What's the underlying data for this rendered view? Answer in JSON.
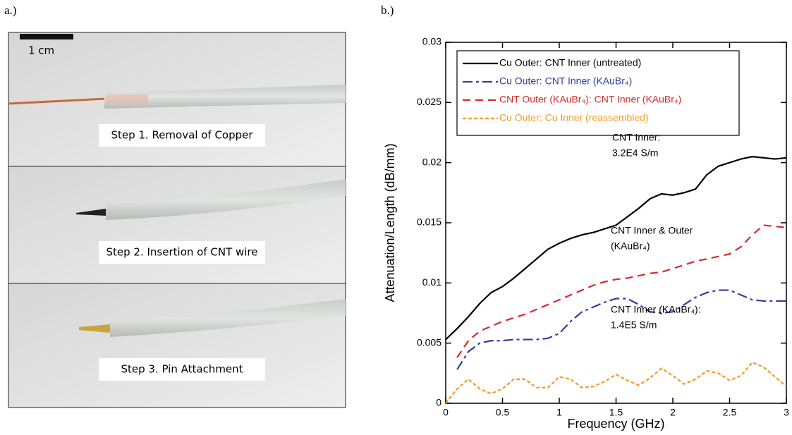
{
  "panels": {
    "a_label": "a.)",
    "b_label": "b.)"
  },
  "photo": {
    "scale_bar": "1 cm",
    "steps": [
      "Step 1. Removal of Copper",
      "Step 2. Insertion of CNT wire",
      "Step 3. Pin Attachment"
    ]
  },
  "chart_data": {
    "type": "line",
    "x_label": "Frequency (GHz)",
    "y_label": "Attenuation/Length (dB/mm)",
    "xlim": [
      0,
      3
    ],
    "xticks": [
      0,
      0.5,
      1,
      1.5,
      2,
      2.5,
      3
    ],
    "ylim": [
      0,
      0.03
    ],
    "yticks": [
      0,
      0.005,
      0.01,
      0.015,
      0.02,
      0.025,
      0.03
    ],
    "x": [
      0,
      0.1,
      0.2,
      0.3,
      0.4,
      0.5,
      0.6,
      0.7,
      0.8,
      0.9,
      1.0,
      1.1,
      1.2,
      1.3,
      1.4,
      1.5,
      1.6,
      1.7,
      1.8,
      1.9,
      2.0,
      2.1,
      2.2,
      2.3,
      2.4,
      2.5,
      2.6,
      2.7,
      2.8,
      2.9,
      3.0
    ],
    "series": [
      {
        "name": "Cu Outer: CNT Inner (untreated)",
        "color": "#000000",
        "dash": "solid",
        "values": [
          0.0053,
          0.0062,
          0.0072,
          0.0083,
          0.0092,
          0.0097,
          0.0104,
          0.0112,
          0.012,
          0.0128,
          0.0133,
          0.0137,
          0.014,
          0.0142,
          0.0145,
          0.0148,
          0.0155,
          0.0162,
          0.017,
          0.0174,
          0.0173,
          0.0175,
          0.0178,
          0.019,
          0.0197,
          0.02,
          0.0203,
          0.0205,
          0.0204,
          0.0203,
          0.0204
        ]
      },
      {
        "name": "Cu Outer: CNT Inner (KAuBr₄)",
        "color": "#2e3f9e",
        "dash": "dashdot",
        "values": [
          null,
          0.0028,
          0.0043,
          0.005,
          0.0052,
          0.0052,
          0.0053,
          0.0053,
          0.0053,
          0.0054,
          0.0058,
          0.0068,
          0.0076,
          0.008,
          0.0084,
          0.0087,
          0.0087,
          0.0082,
          0.0076,
          0.0075,
          0.0076,
          0.0082,
          0.0088,
          0.0092,
          0.0094,
          0.0094,
          0.009,
          0.0086,
          0.0085,
          0.0085,
          0.0085
        ]
      },
      {
        "name": "CNT Outer (KAuBr₄): CNT Inner (KAuBr₄)",
        "color": "#d42a2a",
        "dash": "dashed",
        "values": [
          null,
          0.0038,
          0.0052,
          0.006,
          0.0064,
          0.0068,
          0.0071,
          0.0074,
          0.0078,
          0.0082,
          0.0086,
          0.009,
          0.0094,
          0.0098,
          0.0101,
          0.0103,
          0.0104,
          0.0106,
          0.0108,
          0.0109,
          0.0112,
          0.0115,
          0.0118,
          0.012,
          0.0122,
          0.0124,
          0.013,
          0.014,
          0.0148,
          0.0147,
          0.0146
        ]
      },
      {
        "name": "Cu Outer: Cu Inner (reassembled)",
        "color": "#f39a2a",
        "dash": "dotted",
        "values": [
          0,
          0.0012,
          0.002,
          0.0012,
          0.0008,
          0.0012,
          0.002,
          0.002,
          0.0013,
          0.0013,
          0.0022,
          0.002,
          0.0013,
          0.0014,
          0.0018,
          0.0024,
          0.0019,
          0.0015,
          0.0021,
          0.0029,
          0.0023,
          0.0016,
          0.002,
          0.0027,
          0.0025,
          0.0019,
          0.0023,
          0.0034,
          0.003,
          0.0022,
          0.0014
        ]
      }
    ],
    "annotations": [
      [
        "CNT Inner:",
        "3.2E4 S/m"
      ],
      [
        "CNT Inner & Outer",
        "(KAuBr₄)"
      ],
      [
        "CNT Inner (KAuBr₄):",
        "1.4E5 S/m"
      ]
    ]
  }
}
